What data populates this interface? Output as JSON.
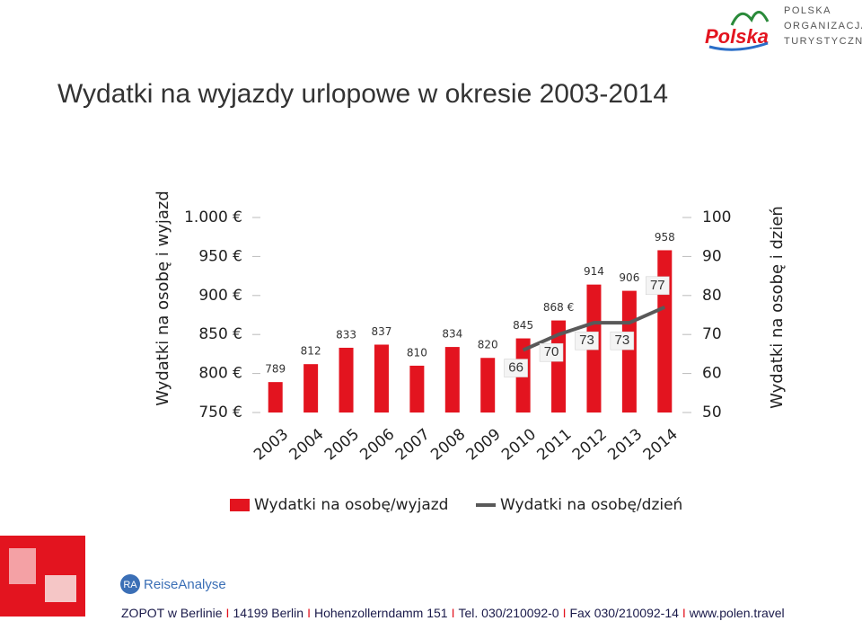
{
  "header": {
    "logo_word": "Polska",
    "org_lines": [
      "POLSKA",
      "ORGANIZACJA",
      "TURYSTYCZNA"
    ]
  },
  "chart_data": {
    "type": "bar_line",
    "title": "Wydatki na wyjazdy urlopowe w okresie 2003-2014",
    "y_label": "Wydatki na osobę i wyjazd",
    "y2_label": "Wydatki na osobę i dzień",
    "categories": [
      "2003",
      "2004",
      "2005",
      "2006",
      "2007",
      "2008",
      "2009",
      "2010",
      "2011",
      "2012",
      "2013",
      "2014"
    ],
    "series": [
      {
        "name": "Wydatki na osobę/wyjazd",
        "type": "bar",
        "color": "#e3141f",
        "values": [
          789,
          812,
          833,
          837,
          810,
          834,
          820,
          845,
          868,
          914,
          906,
          958
        ],
        "value_labels": [
          "789",
          "812",
          "833",
          "837",
          "810",
          "834",
          "820",
          "845",
          "868 €",
          "914",
          "906",
          "958"
        ]
      },
      {
        "name": "Wydatki na osobę/dzień",
        "type": "line",
        "color": "#595959",
        "axis": "y2",
        "values": [
          null,
          null,
          null,
          null,
          null,
          null,
          null,
          66,
          70,
          73,
          73,
          77
        ]
      }
    ],
    "ylim": [
      750,
      1000
    ],
    "yticks": [
      {
        "value": 750,
        "label": "750 €"
      },
      {
        "value": 800,
        "label": "800 €"
      },
      {
        "value": 850,
        "label": "850 €"
      },
      {
        "value": 900,
        "label": "900 €"
      },
      {
        "value": 950,
        "label": "950 €"
      },
      {
        "value": 1000,
        "label": "1.000 €"
      }
    ],
    "y2lim": [
      50,
      100
    ],
    "y2ticks": [
      50,
      60,
      70,
      80,
      90,
      100
    ],
    "legend": "bottom"
  },
  "footer": {
    "brand_short": "RA",
    "brand": "ReiseAnalyse",
    "items": [
      "ZOPOT w Berlinie",
      "14199 Berlin",
      "Hohenzollerndamm 151",
      "Tel. 030/210092-0",
      "Fax 030/210092-14",
      "www.polen.travel"
    ],
    "separator": "I"
  }
}
